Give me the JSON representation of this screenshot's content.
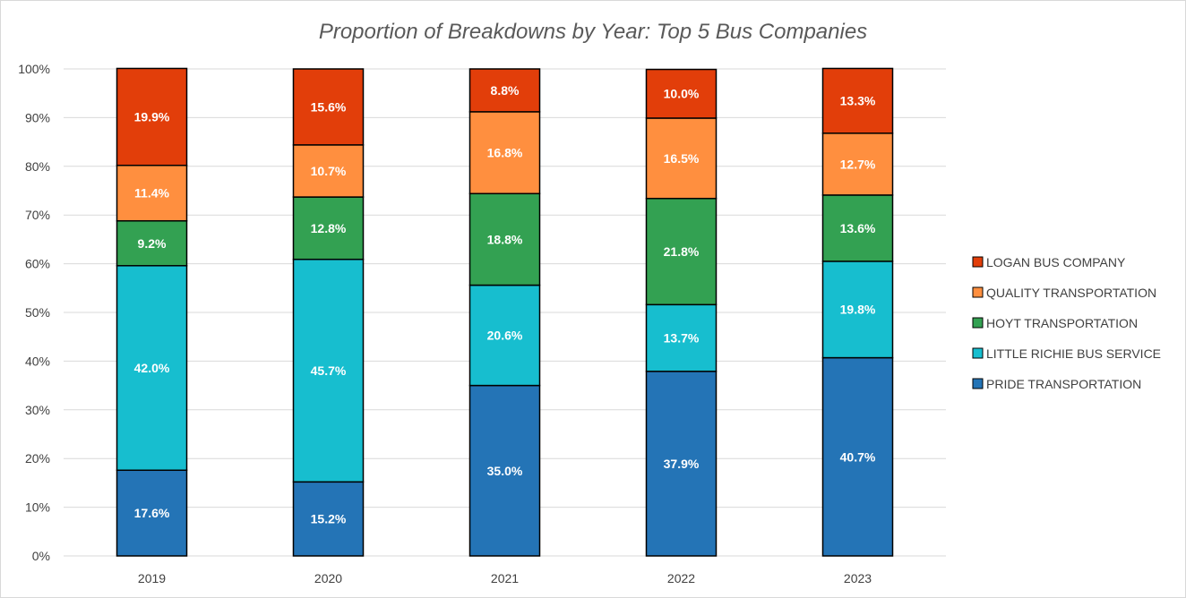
{
  "chart_data": {
    "type": "bar",
    "stacked": true,
    "title": "Proportion of Breakdowns by Year: Top 5 Bus Companies",
    "xlabel": "",
    "ylabel": "",
    "categories": [
      "2019",
      "2020",
      "2021",
      "2022",
      "2023"
    ],
    "ylim": [
      0,
      100
    ],
    "yticks": [
      "0%",
      "10%",
      "20%",
      "30%",
      "40%",
      "50%",
      "60%",
      "70%",
      "80%",
      "90%",
      "100%"
    ],
    "grid": true,
    "legend_position": "right",
    "series": [
      {
        "name": "PRIDE TRANSPORTATION",
        "color": "#2474B6",
        "values": [
          17.6,
          15.2,
          35.0,
          37.9,
          40.7
        ],
        "labels": [
          "17.6%",
          "15.2%",
          "35.0%",
          "37.9%",
          "40.7%"
        ]
      },
      {
        "name": "LITTLE RICHIE BUS SERVICE",
        "color": "#17BECF",
        "values": [
          42.0,
          45.7,
          20.6,
          13.7,
          19.8
        ],
        "labels": [
          "42.0%",
          "45.7%",
          "20.6%",
          "13.7%",
          "19.8%"
        ]
      },
      {
        "name": "HOYT TRANSPORTATION",
        "color": "#33A152",
        "values": [
          9.2,
          12.8,
          18.8,
          21.8,
          13.6
        ],
        "labels": [
          "9.2%",
          "12.8%",
          "18.8%",
          "21.8%",
          "13.6%"
        ]
      },
      {
        "name": "QUALITY TRANSPORTATION",
        "color": "#FF8F3F",
        "values": [
          11.4,
          10.7,
          16.8,
          16.5,
          12.7
        ],
        "labels": [
          "11.4%",
          "10.7%",
          "16.8%",
          "16.5%",
          "12.7%"
        ]
      },
      {
        "name": "LOGAN BUS COMPANY",
        "color": "#E23E0A",
        "values": [
          19.9,
          15.6,
          8.8,
          10.0,
          13.3
        ],
        "labels": [
          "19.9%",
          "15.6%",
          "8.8%",
          "10.0%",
          "13.3%"
        ]
      }
    ],
    "legend_order": [
      "LOGAN BUS COMPANY",
      "QUALITY TRANSPORTATION",
      "HOYT TRANSPORTATION",
      "LITTLE RICHIE BUS SERVICE",
      "PRIDE TRANSPORTATION"
    ],
    "colors": {
      "gridline": "#d9d9d9",
      "bar_border": "#000000",
      "text": "#404040",
      "title": "#595959"
    }
  }
}
